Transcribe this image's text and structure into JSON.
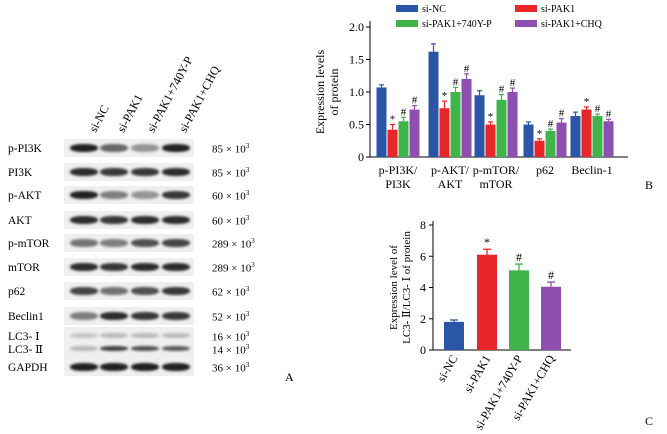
{
  "panelA": {
    "letter": "A",
    "lanes": [
      "si-NC",
      "si-PAK1",
      "si-PAK1+740Y-P",
      "si-PAK1+CHQ"
    ],
    "rows": [
      {
        "label": "p-PI3K",
        "mw": "85 × 10",
        "exp": "3",
        "bands": [
          0.95,
          0.65,
          0.45,
          0.95
        ]
      },
      {
        "label": "PI3K",
        "mw": "85 × 10",
        "exp": "3",
        "bands": [
          0.9,
          0.85,
          0.85,
          0.9
        ]
      },
      {
        "label": "p-AKT",
        "mw": "60 × 10",
        "exp": "3",
        "bands": [
          0.95,
          0.55,
          0.45,
          0.85
        ]
      },
      {
        "label": "AKT",
        "mw": "60 × 10",
        "exp": "3",
        "bands": [
          0.9,
          0.85,
          0.9,
          0.9
        ]
      },
      {
        "label": "p-mTOR",
        "mw": "289 × 10",
        "exp": "3",
        "bands": [
          0.6,
          0.55,
          0.75,
          0.8
        ]
      },
      {
        "label": "mTOR",
        "mw": "289 × 10",
        "exp": "3",
        "bands": [
          0.9,
          0.85,
          0.9,
          0.9
        ]
      },
      {
        "label": "p62",
        "mw": "62 × 10",
        "exp": "3",
        "bands": [
          0.8,
          0.6,
          0.75,
          0.85
        ]
      },
      {
        "label": "Beclin1",
        "mw": "52 × 10",
        "exp": "3",
        "bands": [
          0.55,
          0.9,
          0.85,
          0.85
        ]
      },
      {
        "label": "LC3- Ⅰ",
        "mw": "16 × 10",
        "exp": "3",
        "bands": [
          0.25,
          0.3,
          0.3,
          0.3
        ]
      },
      {
        "label": "LC3- Ⅱ",
        "mw": "14 × 10",
        "exp": "3",
        "bands": [
          0.3,
          0.8,
          0.75,
          0.7
        ]
      },
      {
        "label": "GAPDH",
        "mw": "36 × 10",
        "exp": "3",
        "bands": [
          0.95,
          0.95,
          0.95,
          0.95
        ]
      }
    ]
  },
  "chart_data": [
    {
      "panel": "B",
      "type": "bar",
      "ylabel_line1": "Expression levels",
      "ylabel_line2": "of protein",
      "ylim": [
        0,
        2.0
      ],
      "yticks": [
        "0",
        "0.5",
        "1.0",
        "1.5",
        "2.0"
      ],
      "categories": [
        [
          "p-PI3K/",
          "PI3K"
        ],
        [
          "p-AKT/",
          "AKT"
        ],
        [
          "p-mTOR/",
          "mTOR"
        ],
        [
          "p62"
        ],
        [
          "Beclin-1"
        ]
      ],
      "series": [
        {
          "name": "si-NC",
          "color": "#2b56a8",
          "values": [
            1.07,
            1.62,
            0.95,
            0.5,
            0.63
          ],
          "errors": [
            0.04,
            0.12,
            0.07,
            0.04,
            0.06
          ],
          "marks": [
            "",
            "",
            "",
            "",
            ""
          ]
        },
        {
          "name": "si-PAK1",
          "color": "#e8262a",
          "values": [
            0.42,
            0.75,
            0.5,
            0.25,
            0.73
          ],
          "errors": [
            0.08,
            0.11,
            0.04,
            0.03,
            0.04
          ],
          "marks": [
            "*",
            "*",
            "*",
            "*",
            "*"
          ]
        },
        {
          "name": "si-PAK1+740Y-P",
          "color": "#3fb44a",
          "values": [
            0.55,
            1.0,
            0.88,
            0.4,
            0.63
          ],
          "errors": [
            0.06,
            0.07,
            0.08,
            0.03,
            0.03
          ],
          "marks": [
            "#",
            "#",
            "#",
            "#",
            "#"
          ]
        },
        {
          "name": "si-PAK1+CHQ",
          "color": "#8e4fb0",
          "values": [
            0.73,
            1.2,
            1.0,
            0.53,
            0.55
          ],
          "errors": [
            0.06,
            0.08,
            0.06,
            0.06,
            0.03
          ],
          "marks": [
            "#",
            "#",
            "#",
            "#",
            "#"
          ]
        }
      ]
    },
    {
      "panel": "C",
      "type": "bar",
      "ylabel_line1": "Expression level of",
      "ylabel_line2": "LC3- Ⅱ/LC3- Ⅰ of protein",
      "ylim": [
        0,
        8
      ],
      "yticks": [
        "0",
        "2",
        "4",
        "6",
        "8"
      ],
      "categories": [
        "si-NC",
        "si-PAK1",
        "si-PAK1+740Y-P",
        "si-PAK1+CHQ"
      ],
      "colors": [
        "#2b56a8",
        "#e8262a",
        "#3fb44a",
        "#8e4fb0"
      ],
      "values": [
        1.8,
        6.1,
        5.1,
        4.05
      ],
      "errors": [
        0.12,
        0.35,
        0.4,
        0.3
      ],
      "marks": [
        "",
        "*",
        "#",
        "#"
      ]
    }
  ]
}
